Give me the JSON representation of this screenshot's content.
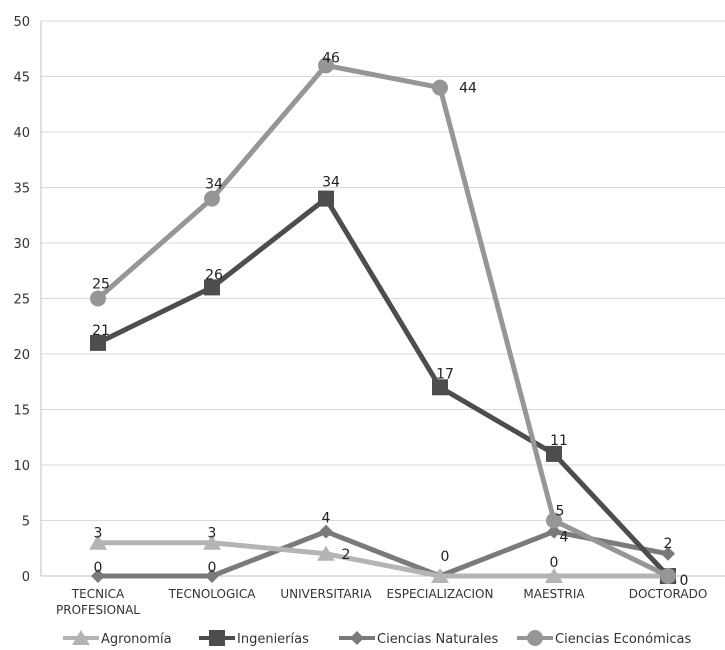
{
  "chart_data": {
    "type": "line",
    "categories": [
      "TECNICA PROFESIONAL",
      "TECNOLOGICA",
      "UNIVERSITARIA",
      "ESPECIALIZACION",
      "MAESTRIA",
      "DOCTORADO"
    ],
    "ylim": [
      0,
      50
    ],
    "yticks": [
      0,
      5,
      10,
      15,
      20,
      25,
      30,
      35,
      40,
      45,
      50
    ],
    "grid": true,
    "legend_position": "bottom",
    "series": [
      {
        "name": "Agronomía",
        "values": [
          3,
          3,
          2,
          0,
          0,
          0
        ],
        "labels": [
          "3",
          "3",
          "2",
          "",
          "0",
          ""
        ],
        "color": "#b4b4b4",
        "marker": "triangle"
      },
      {
        "name": "Ingenierías",
        "values": [
          21,
          26,
          34,
          17,
          11,
          0
        ],
        "labels": [
          "21",
          "26",
          "34",
          "17",
          "11",
          "0"
        ],
        "color": "#4d4d4d",
        "marker": "square"
      },
      {
        "name": "Ciencias Naturales",
        "values": [
          0,
          0,
          4,
          0,
          4,
          2
        ],
        "labels": [
          "0",
          "0",
          "4",
          "0",
          "4",
          "2"
        ],
        "color": "#7a7a7a",
        "marker": "diamond"
      },
      {
        "name": "Ciencias Económicas",
        "values": [
          25,
          34,
          46,
          44,
          5,
          0
        ],
        "labels": [
          "25",
          "34",
          "46",
          "44",
          "5",
          ""
        ],
        "color": "#969696",
        "marker": "circle"
      }
    ]
  }
}
